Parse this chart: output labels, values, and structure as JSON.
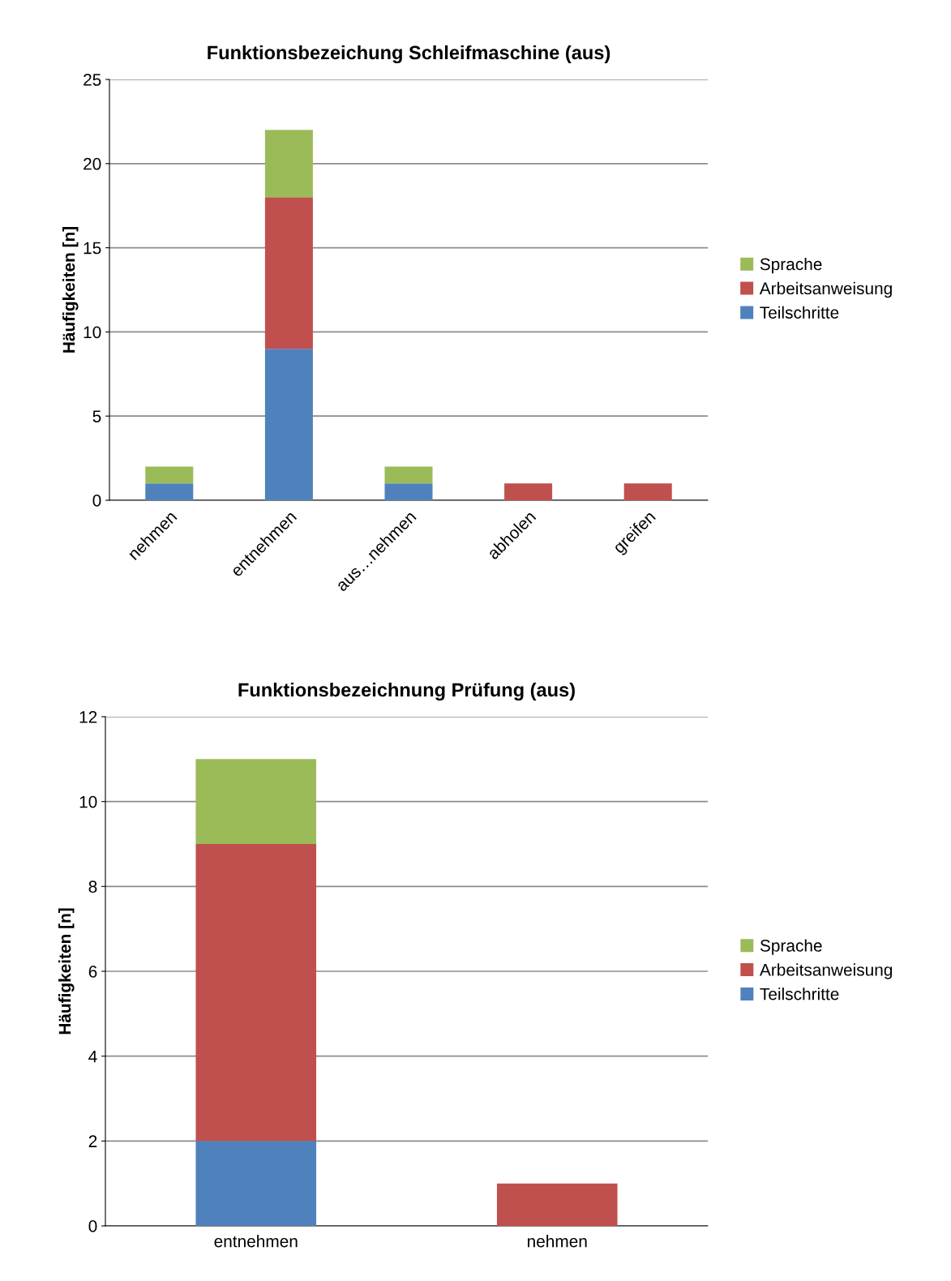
{
  "chart_data": [
    {
      "type": "bar",
      "stacked": true,
      "title": "Funktionsbezeichung Schleifmaschine (aus)",
      "ylabel": "Häufigkeiten [n]",
      "categories": [
        "nehmen",
        "entnehmen",
        "aus…nehmen",
        "abholen",
        "greifen"
      ],
      "series": [
        {
          "name": "Teilschritte",
          "color": "#4f81bd",
          "values": [
            1,
            9,
            1,
            0,
            0
          ]
        },
        {
          "name": "Arbeitsanweisung",
          "color": "#c0504d",
          "values": [
            0,
            9,
            0,
            1,
            1
          ]
        },
        {
          "name": "Sprache",
          "color": "#9bbb59",
          "values": [
            1,
            4,
            1,
            0,
            0
          ]
        }
      ],
      "ylim": [
        0,
        25
      ],
      "yticks": [
        0,
        5,
        10,
        15,
        20,
        25
      ],
      "grid": "y",
      "legend": "right"
    },
    {
      "type": "bar",
      "stacked": true,
      "title": "Funktionsbezeichnung Prüfung (aus)",
      "ylabel": "Häufigkeiten [n]",
      "categories": [
        "entnehmen",
        "nehmen"
      ],
      "series": [
        {
          "name": "Teilschritte",
          "color": "#4f81bd",
          "values": [
            2,
            0
          ]
        },
        {
          "name": "Arbeitsanweisung",
          "color": "#c0504d",
          "values": [
            7,
            1
          ]
        },
        {
          "name": "Sprache",
          "color": "#9bbb59",
          "values": [
            2,
            0
          ]
        }
      ],
      "ylim": [
        0,
        12
      ],
      "yticks": [
        0,
        2,
        4,
        6,
        8,
        10,
        12
      ],
      "grid": "y",
      "legend": "right"
    }
  ]
}
